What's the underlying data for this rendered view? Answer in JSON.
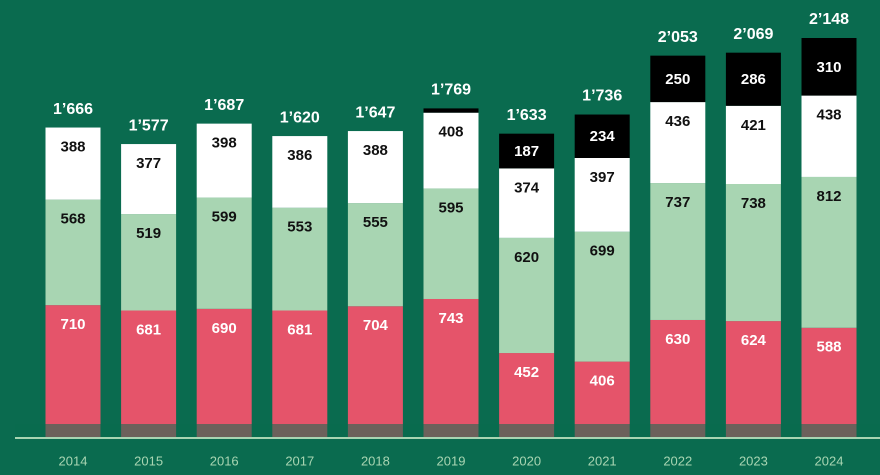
{
  "chart_data": {
    "type": "stacked_bar",
    "categories": [
      "2014",
      "2015",
      "2016",
      "2017",
      "2018",
      "2019",
      "2020",
      "2021",
      "2022",
      "2023",
      "2024"
    ],
    "series": [
      {
        "color": "#e5546a",
        "label_color": "#ffffff",
        "values": [
          710,
          681,
          690,
          681,
          704,
          743,
          452,
          406,
          630,
          624,
          588
        ]
      },
      {
        "color": "#a8d5b2",
        "label_color": "#111111",
        "values": [
          568,
          519,
          599,
          553,
          555,
          595,
          620,
          699,
          737,
          738,
          812
        ]
      },
      {
        "color": "#ffffff",
        "label_color": "#111111",
        "values": [
          388,
          377,
          398,
          386,
          388,
          408,
          374,
          397,
          436,
          421,
          438
        ]
      },
      {
        "color": "#000000",
        "label_color": "#ffffff",
        "values": [
          0,
          0,
          0,
          0,
          0,
          23,
          187,
          234,
          250,
          286,
          310
        ],
        "value_labels": [
          null,
          null,
          null,
          null,
          null,
          null,
          "187",
          "234",
          "250",
          "286",
          "310"
        ]
      }
    ],
    "totals": [
      1666,
      1577,
      1687,
      1620,
      1647,
      1769,
      1633,
      1736,
      2053,
      2069,
      2148
    ],
    "total_labels": [
      "1’666",
      "1’577",
      "1’687",
      "1’620",
      "1’647",
      "1’769",
      "1’633",
      "1’736",
      "2’053",
      "2’069",
      "2’148"
    ]
  }
}
